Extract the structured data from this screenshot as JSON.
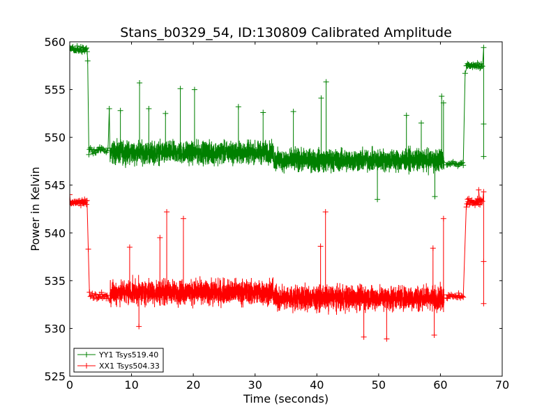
{
  "chart_data": {
    "type": "line",
    "title": "Stans_b0329_54, ID:130809 Calibrated Amplitude",
    "xlabel": "Time (seconds)",
    "ylabel": "Power in Kelvin",
    "xlim": [
      0,
      70
    ],
    "ylim": [
      525,
      560
    ],
    "xticks": [
      0,
      10,
      20,
      30,
      40,
      50,
      60,
      70
    ],
    "yticks": [
      525,
      530,
      535,
      540,
      545,
      550,
      555,
      560
    ],
    "grid": false,
    "legend": "lower-left",
    "marker": "plus",
    "series": [
      {
        "name": "YY1 Tsys519.40",
        "color": "#008000",
        "segments": [
          {
            "x_start": 0.0,
            "x_end": 2.8,
            "base": 559.2,
            "noise": 0.25,
            "step": 0.1
          },
          {
            "x_start": 3.2,
            "x_end": 6.3,
            "base": 548.6,
            "noise": 0.25,
            "step": 0.15
          },
          {
            "x_start": 6.5,
            "x_end": 33.0,
            "base": 548.4,
            "noise": 1.0,
            "step": 0.012
          },
          {
            "x_start": 33.0,
            "x_end": 60.6,
            "base": 547.6,
            "noise": 1.0,
            "step": 0.012
          },
          {
            "x_start": 61.0,
            "x_end": 63.8,
            "base": 547.2,
            "noise": 0.2,
            "step": 0.15
          },
          {
            "x_start": 64.2,
            "x_end": 66.8,
            "base": 557.5,
            "noise": 0.3,
            "step": 0.1
          }
        ],
        "spikes": [
          {
            "x": 2.9,
            "y": 558.0
          },
          {
            "x": 3.1,
            "y": 548.2
          },
          {
            "x": 6.4,
            "y": 553.0
          },
          {
            "x": 8.2,
            "y": 552.8
          },
          {
            "x": 11.3,
            "y": 555.7
          },
          {
            "x": 12.8,
            "y": 553.0
          },
          {
            "x": 15.5,
            "y": 552.5
          },
          {
            "x": 17.9,
            "y": 555.1
          },
          {
            "x": 20.2,
            "y": 555.0
          },
          {
            "x": 27.3,
            "y": 553.2
          },
          {
            "x": 31.3,
            "y": 552.6
          },
          {
            "x": 36.2,
            "y": 552.7
          },
          {
            "x": 41.5,
            "y": 555.8
          },
          {
            "x": 40.7,
            "y": 554.1
          },
          {
            "x": 54.5,
            "y": 552.3
          },
          {
            "x": 56.9,
            "y": 551.5
          },
          {
            "x": 60.2,
            "y": 554.3
          },
          {
            "x": 60.5,
            "y": 553.6
          },
          {
            "x": 64.0,
            "y": 556.7
          },
          {
            "x": 67.0,
            "y": 559.4
          },
          {
            "x": 67.0,
            "y": 548.0
          },
          {
            "x": 67.0,
            "y": 551.4
          },
          {
            "x": 59.1,
            "y": 543.8
          },
          {
            "x": 49.8,
            "y": 543.5
          }
        ]
      },
      {
        "name": "XX1 Tsys504.33",
        "color": "#ff0000",
        "segments": [
          {
            "x_start": 0.0,
            "x_end": 2.8,
            "base": 543.2,
            "noise": 0.25,
            "step": 0.1
          },
          {
            "x_start": 3.2,
            "x_end": 6.3,
            "base": 533.4,
            "noise": 0.3,
            "step": 0.15
          },
          {
            "x_start": 6.5,
            "x_end": 33.0,
            "base": 533.8,
            "noise": 1.1,
            "step": 0.012
          },
          {
            "x_start": 33.0,
            "x_end": 60.6,
            "base": 533.2,
            "noise": 1.1,
            "step": 0.012
          },
          {
            "x_start": 61.0,
            "x_end": 63.8,
            "base": 533.4,
            "noise": 0.25,
            "step": 0.15
          },
          {
            "x_start": 64.2,
            "x_end": 66.8,
            "base": 543.2,
            "noise": 0.35,
            "step": 0.1
          }
        ],
        "spikes": [
          {
            "x": 0.0,
            "y": 544.0
          },
          {
            "x": 3.0,
            "y": 538.3
          },
          {
            "x": 15.7,
            "y": 542.2
          },
          {
            "x": 14.6,
            "y": 539.5
          },
          {
            "x": 18.4,
            "y": 541.5
          },
          {
            "x": 9.7,
            "y": 538.5
          },
          {
            "x": 41.4,
            "y": 542.2
          },
          {
            "x": 40.6,
            "y": 538.6
          },
          {
            "x": 60.5,
            "y": 541.5
          },
          {
            "x": 58.8,
            "y": 538.4
          },
          {
            "x": 66.2,
            "y": 544.5
          },
          {
            "x": 67.0,
            "y": 544.3
          },
          {
            "x": 67.0,
            "y": 532.6
          },
          {
            "x": 67.0,
            "y": 537.0
          },
          {
            "x": 51.3,
            "y": 528.9
          },
          {
            "x": 47.6,
            "y": 529.1
          },
          {
            "x": 59.0,
            "y": 529.3
          },
          {
            "x": 11.2,
            "y": 530.2
          }
        ]
      }
    ]
  }
}
